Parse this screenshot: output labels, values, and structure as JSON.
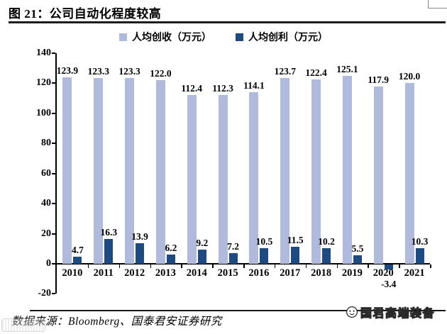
{
  "figure": {
    "title": "图 21：公司自动化程度较高",
    "source": "数据来源：Bloomberg、国泰君安证券研究",
    "watermark": "国君高端装备"
  },
  "chart_data": {
    "type": "bar",
    "categories": [
      "2010",
      "2011",
      "2012",
      "2013",
      "2014",
      "2015",
      "2016",
      "2017",
      "2018",
      "2019",
      "2020",
      "2021"
    ],
    "series": [
      {
        "name": "人均创收（万元）",
        "color": "#AFBADD",
        "values": [
          123.9,
          123.3,
          123.3,
          122.0,
          112.4,
          112.3,
          114.1,
          123.7,
          122.4,
          125.1,
          117.9,
          120.0
        ]
      },
      {
        "name": "人均创利（万元）",
        "color": "#1E4A82",
        "values": [
          4.7,
          16.3,
          13.9,
          6.2,
          9.2,
          7.2,
          10.5,
          11.5,
          10.2,
          5.5,
          -3.4,
          10.3
        ]
      }
    ],
    "ylim": [
      -20,
      140
    ],
    "ytick_step": 20,
    "grid": false,
    "legend_position": "top",
    "value_labels": true,
    "label_color": "#000000"
  }
}
